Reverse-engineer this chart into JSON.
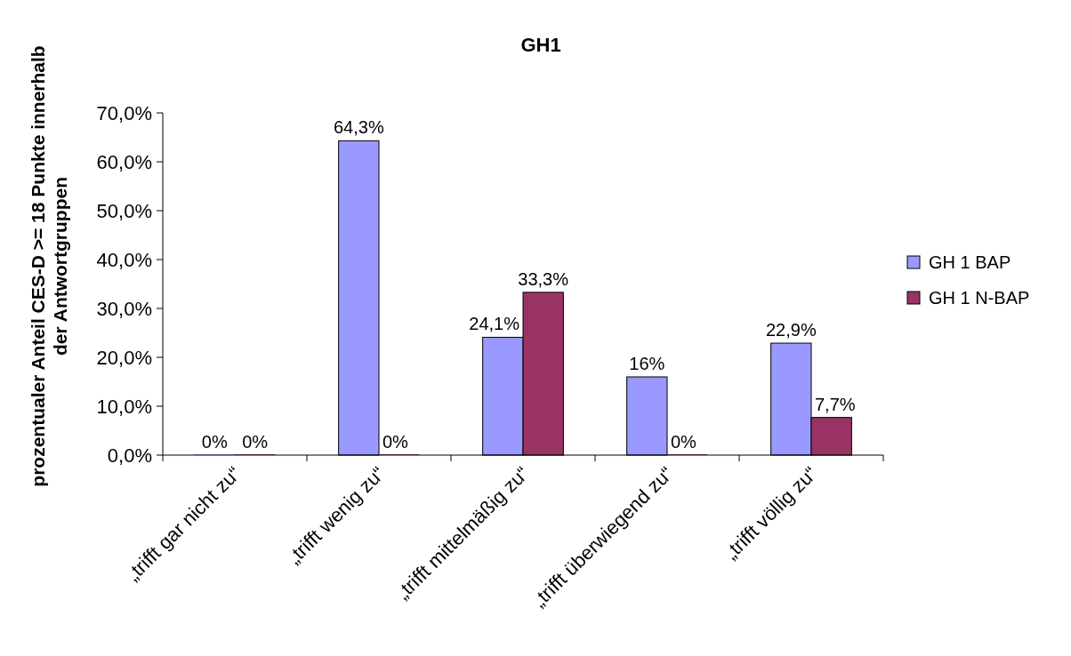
{
  "chart_data": {
    "type": "bar",
    "title": "GH1",
    "ylabel": "prozentualer Anteil CES-D >= 18 Punkte innerhalb\nder Antwortgruppen",
    "categories": [
      "„trifft gar nicht zu“",
      "„trifft wenig zu“",
      "„trifft mittelmäßig zu“",
      "„trifft überwiegend zu“",
      "„trifft völlig zu“"
    ],
    "series": [
      {
        "name": "GH 1 BAP",
        "color": "#9999ff",
        "values": [
          0,
          64.3,
          24.1,
          16,
          22.9
        ],
        "value_labels": [
          "0%",
          "64,3%",
          "24,1%",
          "16%",
          "22,9%"
        ]
      },
      {
        "name": "GH 1 N-BAP",
        "color": "#993366",
        "values": [
          0,
          0,
          33.3,
          0,
          7.7
        ],
        "value_labels": [
          "0%",
          "0%",
          "33,3%",
          "0%",
          "7,7%"
        ]
      }
    ],
    "ylim": [
      0,
      70
    ],
    "yticks": [
      {
        "value": 0,
        "label": "0,0%"
      },
      {
        "value": 10,
        "label": "10,0%"
      },
      {
        "value": 20,
        "label": "20,0%"
      },
      {
        "value": 30,
        "label": "30,0%"
      },
      {
        "value": 40,
        "label": "40,0%"
      },
      {
        "value": 50,
        "label": "50,0%"
      },
      {
        "value": 60,
        "label": "60,0%"
      },
      {
        "value": 70,
        "label": "70,0%"
      }
    ],
    "grid": false,
    "legend": "right"
  }
}
